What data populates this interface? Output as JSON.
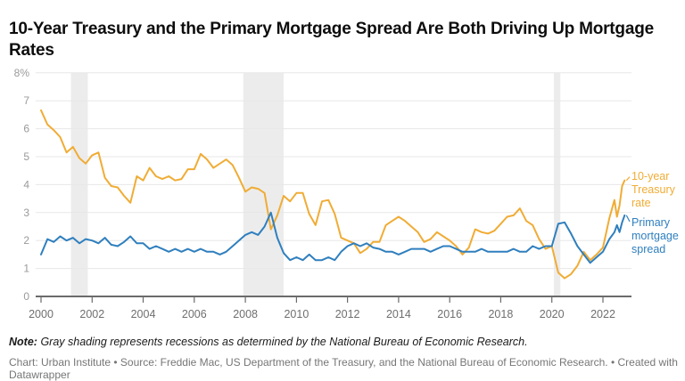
{
  "header": {
    "title": "10-Year Treasury and the Primary Mortgage Spread Are Both Driving Up Mortgage Rates"
  },
  "footer": {
    "note_label": "Note:",
    "note_text": "Gray shading represents recessions as determined by the National Bureau of Economic Research.",
    "byline": "Chart: Urban Institute • Source: Freddie Mac, US Department of the Treasury, and the National Bureau of Economic Research. • Created with Datawrapper"
  },
  "colors": {
    "treasury_line": "#F0AC35",
    "spread_line": "#2F7FBE",
    "recession_shading": "#ECECEC",
    "grid": "#E7E7E7",
    "axis": "#6B6B6B",
    "y_tick_label": "#9A9A9A",
    "x_tick_label": "#6F6F6F"
  },
  "chart_data": {
    "type": "line",
    "title": "10-Year Treasury and the Primary Mortgage Spread Are Both Driving Up Mortgage Rates",
    "xlabel": "",
    "ylabel": "",
    "y_unit": "%",
    "ylim": [
      0,
      8
    ],
    "y_ticks": [
      0,
      1,
      2,
      3,
      4,
      5,
      6,
      7,
      8
    ],
    "y_top_tick_label": "8%",
    "x_ticks": [
      2000,
      2002,
      2004,
      2006,
      2008,
      2010,
      2012,
      2014,
      2016,
      2018,
      2020,
      2022
    ],
    "xlim": [
      1999.8,
      2023.1
    ],
    "grid": "horizontal",
    "legend_position": "right",
    "recessions": [
      [
        2001.17,
        2001.83
      ],
      [
        2007.92,
        2009.5
      ],
      [
        2020.08,
        2020.33
      ]
    ],
    "x": [
      2000,
      2000.25,
      2000.5,
      2000.75,
      2001,
      2001.25,
      2001.5,
      2001.75,
      2002,
      2002.25,
      2002.5,
      2002.75,
      2003,
      2003.25,
      2003.5,
      2003.75,
      2004,
      2004.25,
      2004.5,
      2004.75,
      2005,
      2005.25,
      2005.5,
      2005.75,
      2006,
      2006.25,
      2006.5,
      2006.75,
      2007,
      2007.25,
      2007.5,
      2007.75,
      2008,
      2008.25,
      2008.5,
      2008.75,
      2009,
      2009.25,
      2009.5,
      2009.75,
      2010,
      2010.25,
      2010.5,
      2010.75,
      2011,
      2011.25,
      2011.5,
      2011.75,
      2012,
      2012.25,
      2012.5,
      2012.75,
      2013,
      2013.25,
      2013.5,
      2013.75,
      2014,
      2014.25,
      2014.5,
      2014.75,
      2015,
      2015.25,
      2015.5,
      2015.75,
      2016,
      2016.25,
      2016.5,
      2016.75,
      2017,
      2017.25,
      2017.5,
      2017.75,
      2018,
      2018.25,
      2018.5,
      2018.75,
      2019,
      2019.25,
      2019.5,
      2019.75,
      2020,
      2020.25,
      2020.5,
      2020.75,
      2021,
      2021.25,
      2021.5,
      2021.75,
      2022,
      2022.25,
      2022.45,
      2022.55,
      2022.65,
      2022.75,
      2022.85
    ],
    "series": [
      {
        "name": "10-year Treasury rate",
        "color": "#F0AC35",
        "values": [
          6.66,
          6.15,
          5.95,
          5.7,
          5.15,
          5.35,
          4.95,
          4.75,
          5.05,
          5.15,
          4.25,
          3.95,
          3.9,
          3.6,
          3.35,
          4.3,
          4.15,
          4.6,
          4.3,
          4.2,
          4.3,
          4.15,
          4.2,
          4.55,
          4.55,
          5.1,
          4.9,
          4.6,
          4.75,
          4.9,
          4.7,
          4.25,
          3.75,
          3.9,
          3.85,
          3.7,
          2.4,
          2.9,
          3.6,
          3.4,
          3.7,
          3.7,
          2.95,
          2.55,
          3.4,
          3.45,
          2.95,
          2.1,
          2.0,
          1.9,
          1.55,
          1.7,
          1.95,
          1.95,
          2.55,
          2.7,
          2.85,
          2.7,
          2.5,
          2.3,
          1.95,
          2.05,
          2.3,
          2.15,
          2.0,
          1.8,
          1.5,
          1.75,
          2.4,
          2.3,
          2.25,
          2.35,
          2.6,
          2.85,
          2.9,
          3.15,
          2.7,
          2.55,
          2.05,
          1.7,
          1.8,
          0.85,
          0.65,
          0.8,
          1.1,
          1.6,
          1.3,
          1.5,
          1.75,
          2.8,
          3.45,
          2.85,
          3.25,
          3.95,
          4.15
        ]
      },
      {
        "name": "Primary mortgage spread",
        "color": "#2F7FBE",
        "values": [
          1.5,
          2.05,
          1.95,
          2.15,
          2.0,
          2.1,
          1.9,
          2.05,
          2.0,
          1.9,
          2.1,
          1.85,
          1.8,
          1.95,
          2.15,
          1.9,
          1.9,
          1.7,
          1.8,
          1.7,
          1.6,
          1.7,
          1.6,
          1.7,
          1.6,
          1.7,
          1.6,
          1.6,
          1.5,
          1.6,
          1.8,
          2.0,
          2.2,
          2.3,
          2.2,
          2.5,
          3.0,
          2.1,
          1.55,
          1.3,
          1.4,
          1.3,
          1.5,
          1.3,
          1.3,
          1.4,
          1.3,
          1.6,
          1.8,
          1.9,
          1.8,
          1.9,
          1.75,
          1.7,
          1.6,
          1.6,
          1.5,
          1.6,
          1.7,
          1.7,
          1.7,
          1.6,
          1.7,
          1.8,
          1.8,
          1.7,
          1.6,
          1.6,
          1.6,
          1.7,
          1.6,
          1.6,
          1.6,
          1.6,
          1.7,
          1.6,
          1.6,
          1.8,
          1.7,
          1.8,
          1.8,
          2.6,
          2.65,
          2.25,
          1.8,
          1.5,
          1.2,
          1.4,
          1.6,
          2.05,
          2.3,
          2.55,
          2.3,
          2.65,
          2.9
        ]
      }
    ]
  }
}
